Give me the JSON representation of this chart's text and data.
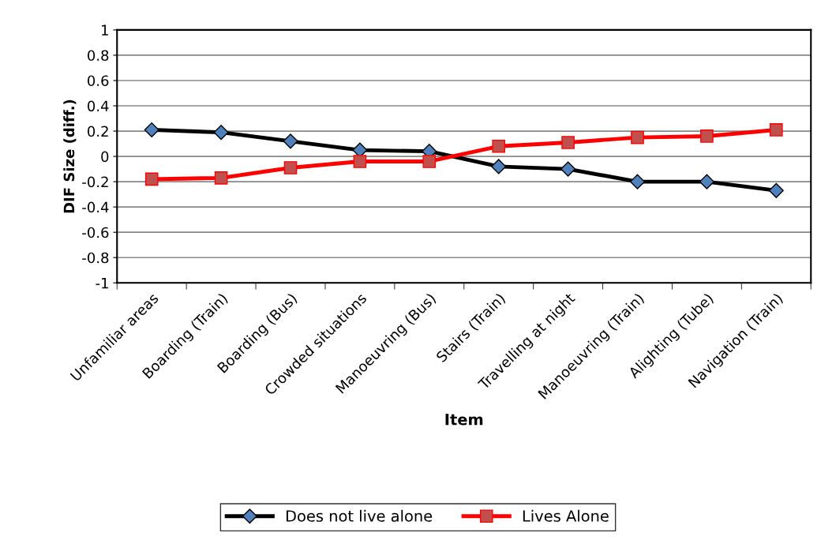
{
  "chart_data": {
    "type": "line",
    "xlabel": "Item",
    "ylabel": "DIF Size (diff.)",
    "categories": [
      "Unfamiliar areas",
      "Boarding (Train)",
      "Boarding (Bus)",
      "Crowded situations",
      "Manoeuvring (Bus)",
      "Stairs (Train)",
      "Travelling at night",
      "Manoeuvring (Train)",
      "Alighting (Tube)",
      "Navigation (Train)"
    ],
    "series": [
      {
        "name": "Does not live alone",
        "color": "#000000",
        "marker": "diamond",
        "values": [
          0.21,
          0.19,
          0.12,
          0.05,
          0.04,
          -0.08,
          -0.1,
          -0.2,
          -0.2,
          -0.27
        ]
      },
      {
        "name": "Lives Alone",
        "color": "#ff0000",
        "marker": "square",
        "values": [
          -0.18,
          -0.17,
          -0.09,
          -0.04,
          -0.04,
          0.08,
          0.11,
          0.15,
          0.16,
          0.21
        ]
      }
    ],
    "ylim": [
      -1,
      1
    ],
    "yticks": [
      1,
      0.8,
      0.6,
      0.4,
      0.2,
      0,
      -0.2,
      -0.4,
      -0.6,
      -0.8,
      -1
    ],
    "grid": "y",
    "legend": "bottom"
  }
}
